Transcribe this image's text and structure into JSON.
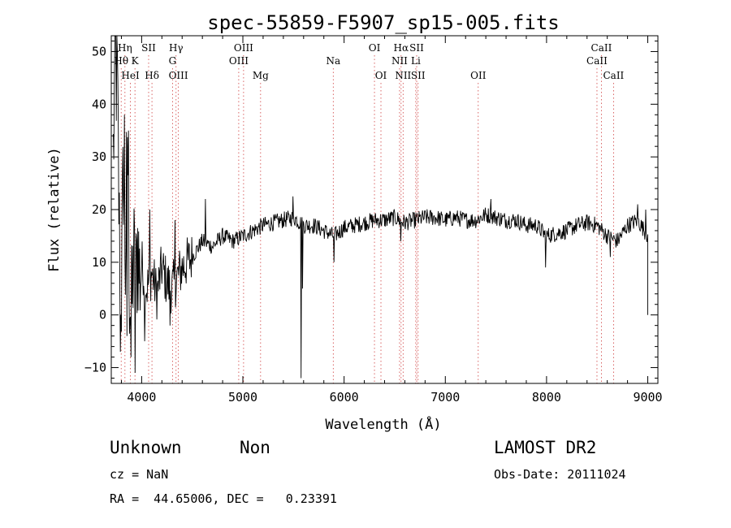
{
  "chart_data": {
    "type": "line",
    "title": "spec-55859-F5907_sp15-005.fits",
    "xlabel": "Wavelength (Å)",
    "ylabel": "Flux (relative)",
    "xlim": [
      3700,
      9100
    ],
    "ylim": [
      -13,
      53
    ],
    "xticks": [
      4000,
      5000,
      6000,
      7000,
      8000,
      9000
    ],
    "yticks": [
      -10,
      0,
      10,
      20,
      30,
      40,
      50
    ],
    "grid": false,
    "line_color": "#000000",
    "marker_color": "#d04040",
    "spectrum_anchors": [
      [
        3720,
        30
      ],
      [
        3740,
        50
      ],
      [
        3760,
        42
      ],
      [
        3780,
        15
      ],
      [
        3800,
        5
      ],
      [
        3820,
        28
      ],
      [
        3840,
        10
      ],
      [
        3860,
        36
      ],
      [
        3880,
        6
      ],
      [
        3900,
        0
      ],
      [
        3920,
        12
      ],
      [
        3940,
        3
      ],
      [
        3960,
        14
      ],
      [
        3980,
        7
      ],
      [
        4000,
        10
      ],
      [
        4050,
        5
      ],
      [
        4100,
        8
      ],
      [
        4150,
        4
      ],
      [
        4200,
        9
      ],
      [
        4250,
        6
      ],
      [
        4300,
        5
      ],
      [
        4350,
        7
      ],
      [
        4400,
        9
      ],
      [
        4450,
        10
      ],
      [
        4500,
        11
      ],
      [
        4600,
        14
      ],
      [
        4700,
        13
      ],
      [
        4800,
        15
      ],
      [
        4900,
        14
      ],
      [
        5000,
        15
      ],
      [
        5100,
        16
      ],
      [
        5200,
        17
      ],
      [
        5300,
        17.5
      ],
      [
        5400,
        18
      ],
      [
        5500,
        18.5
      ],
      [
        5600,
        17
      ],
      [
        5700,
        17
      ],
      [
        5800,
        16
      ],
      [
        5900,
        15
      ],
      [
        6000,
        16.5
      ],
      [
        6100,
        17
      ],
      [
        6200,
        17.5
      ],
      [
        6300,
        18
      ],
      [
        6400,
        18
      ],
      [
        6500,
        18.5
      ],
      [
        6600,
        17.5
      ],
      [
        6700,
        18
      ],
      [
        6800,
        18.5
      ],
      [
        6900,
        18.5
      ],
      [
        7000,
        18
      ],
      [
        7100,
        18.5
      ],
      [
        7200,
        18
      ],
      [
        7300,
        18
      ],
      [
        7400,
        19
      ],
      [
        7500,
        18.5
      ],
      [
        7600,
        18
      ],
      [
        7700,
        18
      ],
      [
        7800,
        17
      ],
      [
        7900,
        17
      ],
      [
        8000,
        15
      ],
      [
        8100,
        15.5
      ],
      [
        8200,
        16
      ],
      [
        8300,
        17
      ],
      [
        8400,
        17.5
      ],
      [
        8500,
        17
      ],
      [
        8600,
        15
      ],
      [
        8700,
        14
      ],
      [
        8800,
        17
      ],
      [
        8900,
        18
      ],
      [
        9000,
        15
      ]
    ],
    "spikes": [
      [
        3760,
        50
      ],
      [
        3790,
        -7
      ],
      [
        3830,
        38
      ],
      [
        3855,
        -4
      ],
      [
        3870,
        35
      ],
      [
        3895,
        -8
      ],
      [
        3935,
        -11
      ],
      [
        4030,
        -5
      ],
      [
        4080,
        20
      ],
      [
        4280,
        -2
      ],
      [
        4330,
        18
      ],
      [
        4630,
        22
      ],
      [
        5495,
        22.5
      ],
      [
        5577,
        -12
      ],
      [
        5590,
        5
      ],
      [
        5900,
        10
      ],
      [
        6560,
        14
      ],
      [
        7450,
        22
      ],
      [
        7990,
        9
      ],
      [
        8630,
        11
      ],
      [
        8900,
        21
      ],
      [
        8980,
        20
      ]
    ],
    "lines": [
      {
        "label": "Hη",
        "wavelength": 3835,
        "row": 0
      },
      {
        "label": "SII",
        "wavelength": 4069,
        "row": 0
      },
      {
        "label": "Hγ",
        "wavelength": 4340,
        "row": 0
      },
      {
        "label": "OIII",
        "wavelength": 5007,
        "row": 0
      },
      {
        "label": "OI",
        "wavelength": 6300,
        "row": 0
      },
      {
        "label": "Hα",
        "wavelength": 6563,
        "row": 0
      },
      {
        "label": "SII",
        "wavelength": 6717,
        "row": 0
      },
      {
        "label": "CaII",
        "wavelength": 8542,
        "row": 0
      },
      {
        "label": "Hθ",
        "wavelength": 3798,
        "row": 1
      },
      {
        "label": "K",
        "wavelength": 3934,
        "row": 1
      },
      {
        "label": "G",
        "wavelength": 4305,
        "row": 1
      },
      {
        "label": "OIII",
        "wavelength": 4959,
        "row": 1
      },
      {
        "label": "Na",
        "wavelength": 5893,
        "row": 1
      },
      {
        "label": "NII",
        "wavelength": 6548,
        "row": 1
      },
      {
        "label": "Li",
        "wavelength": 6708,
        "row": 1
      },
      {
        "label": "CaII",
        "wavelength": 8498,
        "row": 1
      },
      {
        "label": "HeI",
        "wavelength": 3889,
        "row": 2
      },
      {
        "label": "Hδ",
        "wavelength": 4102,
        "row": 2
      },
      {
        "label": "OIII",
        "wavelength": 4363,
        "row": 2
      },
      {
        "label": "Mg",
        "wavelength": 5175,
        "row": 2
      },
      {
        "label": "OI",
        "wavelength": 6364,
        "row": 2
      },
      {
        "label": "NII",
        "wavelength": 6583,
        "row": 2
      },
      {
        "label": "SII",
        "wavelength": 6731,
        "row": 2
      },
      {
        "label": "OII",
        "wavelength": 7325,
        "row": 2
      },
      {
        "label": "CaII",
        "wavelength": 8662,
        "row": 2
      }
    ]
  },
  "info": {
    "class_label": "Unknown",
    "subclass_label": "Non",
    "survey": "LAMOST DR2",
    "cz": "cz = NaN",
    "obs_date": "Obs-Date: 20111024",
    "coords": "RA =  44.65006, DEC =   0.23391"
  }
}
